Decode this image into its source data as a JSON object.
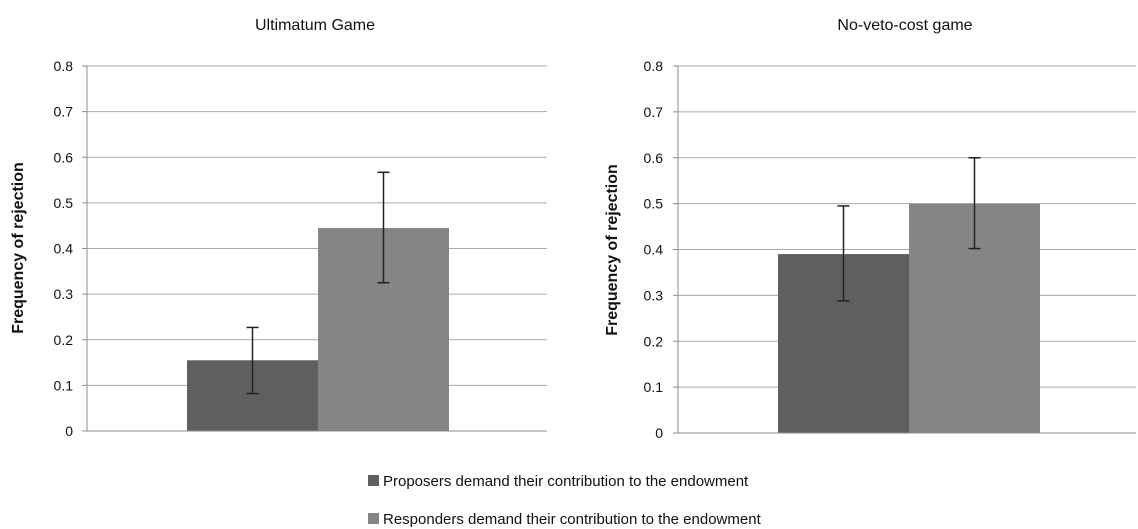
{
  "chart_data": [
    {
      "type": "bar",
      "title": "Ultimatum Game",
      "xlabel": "",
      "ylabel": "Frequency of rejection",
      "ylim": [
        0,
        0.8
      ],
      "yticks": [
        "0",
        "0.1",
        "0.2",
        "0.3",
        "0.4",
        "0.5",
        "0.6",
        "0.7",
        "0.8"
      ],
      "grid": true,
      "series": [
        {
          "name": "Proposers demand their contribution to the endowment",
          "values": [
            0.155
          ],
          "error_low": [
            0.082
          ],
          "error_high": [
            0.227
          ]
        },
        {
          "name": "Responders demand their contribution to the endowment",
          "values": [
            0.445
          ],
          "error_low": [
            0.325
          ],
          "error_high": [
            0.567
          ]
        }
      ]
    },
    {
      "type": "bar",
      "title": "No-veto-cost game",
      "xlabel": "",
      "ylabel": "Frequency of rejection",
      "ylim": [
        0,
        0.8
      ],
      "yticks": [
        "0",
        "0.1",
        "0.2",
        "0.3",
        "0.4",
        "0.5",
        "0.6",
        "0.7",
        "0.8"
      ],
      "grid": true,
      "series": [
        {
          "name": "Proposers demand their contribution to the endowment",
          "values": [
            0.39
          ],
          "error_low": [
            0.288
          ],
          "error_high": [
            0.495
          ]
        },
        {
          "name": "Responders demand their contribution to the endowment",
          "values": [
            0.5
          ],
          "error_low": [
            0.402
          ],
          "error_high": [
            0.6
          ]
        }
      ]
    }
  ],
  "colors": {
    "series": [
      "#5f5f5f",
      "#858585"
    ],
    "grid": "#aaaaaa",
    "axis": "#8c8c8c",
    "error": "#222222"
  },
  "legend": {
    "placement": "bottom-center",
    "items": [
      "Proposers demand their contribution to the endowment",
      "Responders demand their contribution to the endowment"
    ]
  }
}
